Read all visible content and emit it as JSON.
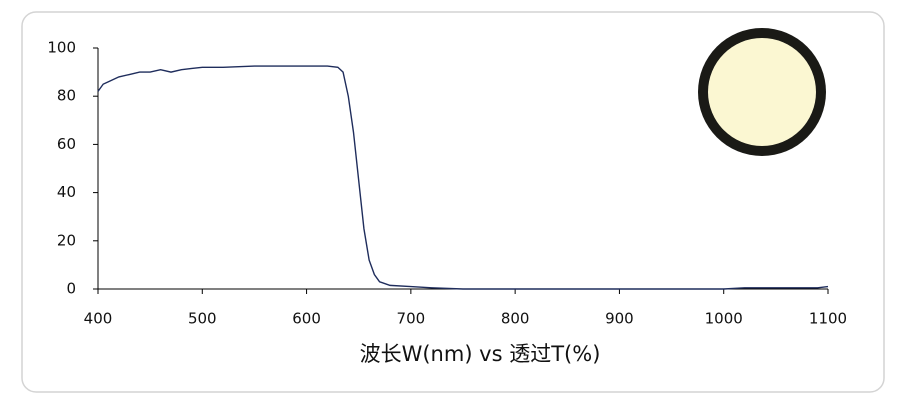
{
  "chart_data": {
    "type": "line",
    "x_label": "波长W(nm) vs 透过T(%)",
    "x": [
      400,
      405,
      410,
      420,
      430,
      440,
      450,
      460,
      470,
      480,
      490,
      500,
      520,
      550,
      600,
      620,
      630,
      635,
      640,
      645,
      650,
      655,
      660,
      665,
      670,
      680,
      700,
      720,
      750,
      800,
      1000,
      1020,
      1090,
      1100
    ],
    "values": [
      82,
      85,
      86,
      88,
      89,
      90,
      90,
      91,
      90,
      91,
      91.5,
      92,
      92,
      92.5,
      92.5,
      92.5,
      92,
      90,
      80,
      65,
      45,
      25,
      12,
      6,
      3,
      1.5,
      1,
      0.5,
      0,
      0,
      0,
      0.5,
      0.5,
      1
    ],
    "color": "#1f2d5c",
    "xlim": [
      400,
      1100
    ],
    "xticks": [
      400,
      500,
      600,
      700,
      800,
      900,
      1000,
      1100
    ],
    "ylim": [
      0,
      100
    ],
    "yticks": [
      0,
      20,
      40,
      60,
      80,
      100
    ]
  }
}
